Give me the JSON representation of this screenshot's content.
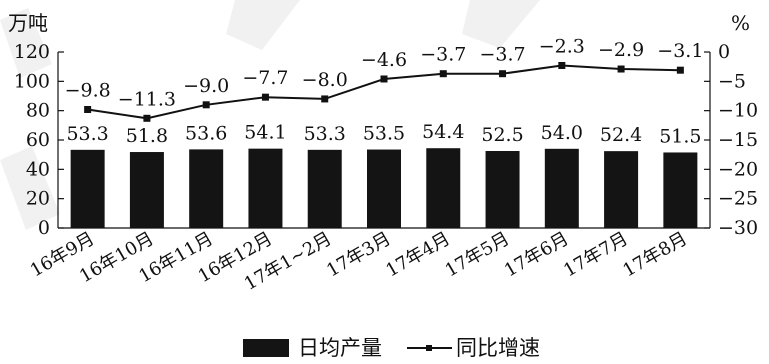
{
  "chart_data": {
    "type": "bar+line",
    "categories": [
      "16年9月",
      "16年10月",
      "16年11月",
      "16年12月",
      "17年1~2月",
      "17年3月",
      "17年4月",
      "17年5月",
      "17年6月",
      "17年7月",
      "17年8月"
    ],
    "series": [
      {
        "name": "日均产量",
        "type": "bar",
        "axis": "left",
        "values": [
          53.3,
          51.8,
          53.6,
          54.1,
          53.3,
          53.5,
          54.4,
          52.5,
          54.0,
          52.4,
          51.5
        ],
        "labels": [
          "53.3",
          "51.8",
          "53.6",
          "54.1",
          "53.3",
          "53.5",
          "54.4",
          "52.5",
          "54.0",
          "52.4",
          "51.5"
        ]
      },
      {
        "name": "同比增速",
        "type": "line",
        "axis": "right",
        "values": [
          -9.8,
          -11.3,
          -9.0,
          -7.7,
          -8.0,
          -4.6,
          -3.7,
          -3.7,
          -2.3,
          -2.9,
          -3.1
        ],
        "labels": [
          "−9.8",
          "−11.3",
          "−9.0",
          "−7.7",
          "−8.0",
          "−4.6",
          "−3.7",
          "−3.7",
          "−2.3",
          "−2.9",
          "−3.1"
        ]
      }
    ],
    "y_left": {
      "unit": "万吨",
      "ylim": [
        0,
        120
      ],
      "ticks": [
        0,
        20,
        40,
        60,
        80,
        100,
        120
      ],
      "tick_labels": [
        "0",
        "20",
        "40",
        "60",
        "80",
        "100",
        "120"
      ]
    },
    "y_right": {
      "unit": "%",
      "ylim": [
        -30,
        0
      ],
      "ticks": [
        0,
        -5,
        -10,
        -15,
        -20,
        -25,
        -30
      ],
      "tick_labels": [
        "0",
        "−5",
        "−10",
        "−15",
        "−20",
        "−25",
        "−30"
      ]
    },
    "legend": {
      "position": "bottom-center",
      "items": [
        {
          "label": "日均产量",
          "symbol": "bar"
        },
        {
          "label": "同比增速",
          "symbol": "line-marker"
        }
      ]
    },
    "grid": false,
    "colors": {
      "bar": "#141414",
      "line": "#111111"
    }
  }
}
